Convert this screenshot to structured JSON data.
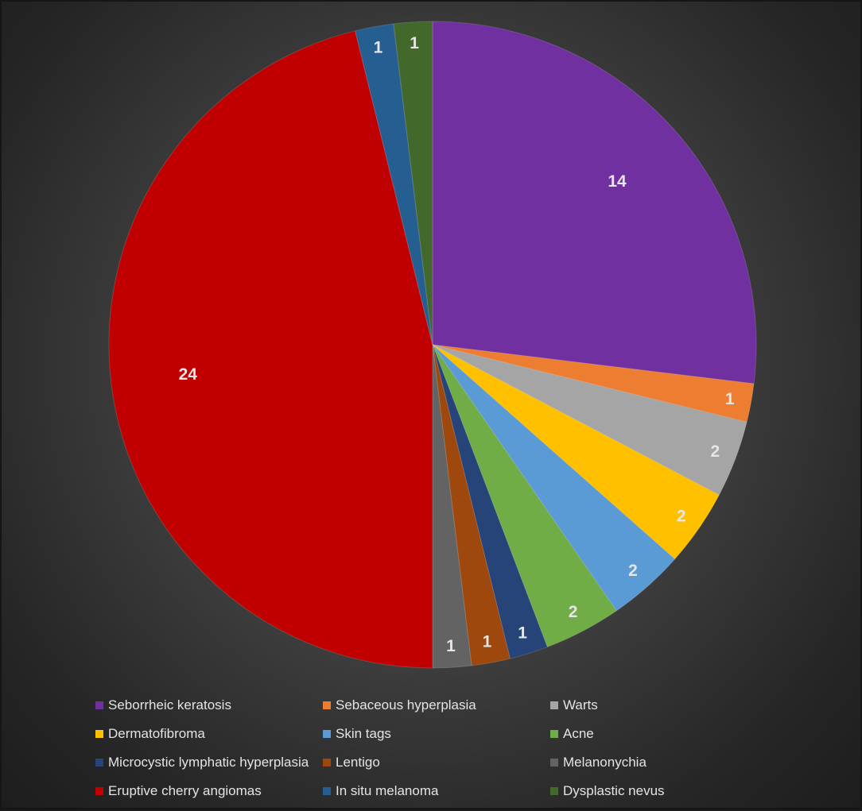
{
  "chart_data": {
    "type": "pie",
    "start_angle_deg": 0,
    "direction": "clockwise",
    "slices": [
      {
        "label": "Seborrheic keratosis",
        "value": 14,
        "color": "#7030A0"
      },
      {
        "label": "Sebaceous hyperplasia",
        "value": 1,
        "color": "#ED7D31"
      },
      {
        "label": "Warts",
        "value": 2,
        "color": "#A5A5A5"
      },
      {
        "label": "Dermatofibroma",
        "value": 2,
        "color": "#FFC000"
      },
      {
        "label": "Skin tags",
        "value": 2,
        "color": "#5B9BD5"
      },
      {
        "label": "Acne",
        "value": 2,
        "color": "#70AD47"
      },
      {
        "label": "Microcystic lymphatic hyperplasia",
        "value": 1,
        "color": "#264478"
      },
      {
        "label": "Lentigo",
        "value": 1,
        "color": "#9E480E"
      },
      {
        "label": "Melanonychia",
        "value": 1,
        "color": "#636363"
      },
      {
        "label": "Eruptive cherry angiomas",
        "value": 24,
        "color": "#C00000"
      },
      {
        "label": "In situ melanoma",
        "value": 1,
        "color": "#255E91"
      },
      {
        "label": "Dysplastic nevus",
        "value": 1,
        "color": "#43682B"
      }
    ],
    "data_labels": true,
    "legend_position": "bottom"
  }
}
